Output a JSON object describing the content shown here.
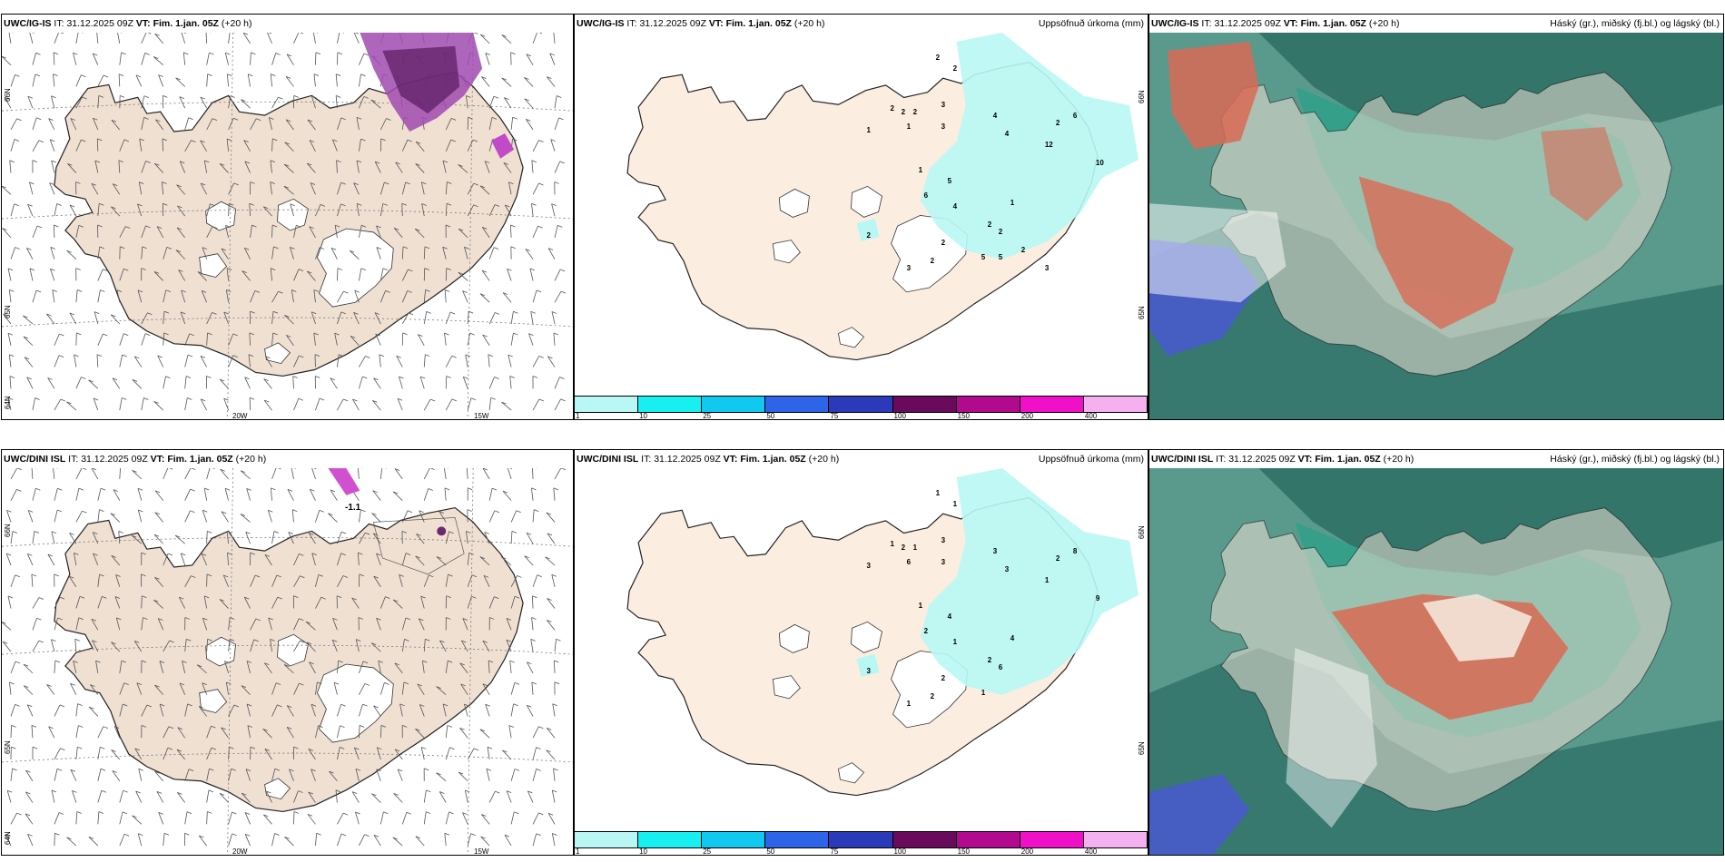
{
  "rows": [
    {
      "model": "UWC/IG-IS",
      "it_label": "IT:",
      "it_value": "31.12.2025 09Z",
      "vt_label": "VT:",
      "vt_value": "Fim. 1.jan. 05Z",
      "lead": "(+20 h)",
      "precip_title": "Uppsöfnuð úrkoma (mm)",
      "cloud_title": "Háský (gr.), miðský (fj.bl.) og lágský (bl.)",
      "lon_labels": [
        "20W",
        "15W"
      ],
      "lat_labels": [
        "66N",
        "65N",
        "64N"
      ],
      "contour_label": "",
      "precip_numbers": [
        "2",
        "2",
        "2",
        "2",
        "2",
        "3",
        "1",
        "1",
        "3",
        "4",
        "6",
        "2",
        "4",
        "12",
        "10",
        "1",
        "5",
        "6",
        "4",
        "1",
        "2",
        "2",
        "2",
        "2",
        "2",
        "3",
        "5",
        "5",
        "2",
        "3"
      ]
    },
    {
      "model": "UWC/DINI ISL",
      "it_label": "IT:",
      "it_value": "31.12.2025 09Z",
      "vt_label": "VT:",
      "vt_value": "Fim. 1.jan. 05Z",
      "lead": "(+20 h)",
      "precip_title": "Uppsöfnuð úrkoma (mm)",
      "cloud_title": "Háský (gr.), miðský (fj.bl.) og lágský (bl.)",
      "lon_labels": [
        "20W",
        "15W"
      ],
      "lat_labels": [
        "66N",
        "65N",
        "64N"
      ],
      "contour_label": "-1.1",
      "precip_numbers": [
        "1",
        "1",
        "1",
        "2",
        "1",
        "3",
        "3",
        "6",
        "3",
        "3",
        "8",
        "2",
        "3",
        "1",
        "9",
        "1",
        "4",
        "2",
        "1",
        "4",
        "2",
        "6",
        "2",
        "3",
        "2",
        "1",
        "1"
      ]
    }
  ],
  "precip_scale": {
    "ticks": [
      "1",
      "10",
      "25",
      "50",
      "75",
      "100",
      "150",
      "200",
      "400"
    ],
    "colors": [
      "#b8f7f4",
      "#18eff0",
      "#10c8f0",
      "#2d64e8",
      "#2b3ab8",
      "#6a0a5c",
      "#b20a8e",
      "#f010c8",
      "#f5b0f0"
    ]
  },
  "colors": {
    "land": "#efe0d2",
    "precip_land": "#fbeee0",
    "cyan": "#b8f7f4",
    "cloud_high_dark": "#2a6b62",
    "cloud_mid": "#5a9a8d",
    "cloud_low": "#31a08a",
    "cloud_red": "#d96a55",
    "cloud_blue": "#4a57d6"
  }
}
